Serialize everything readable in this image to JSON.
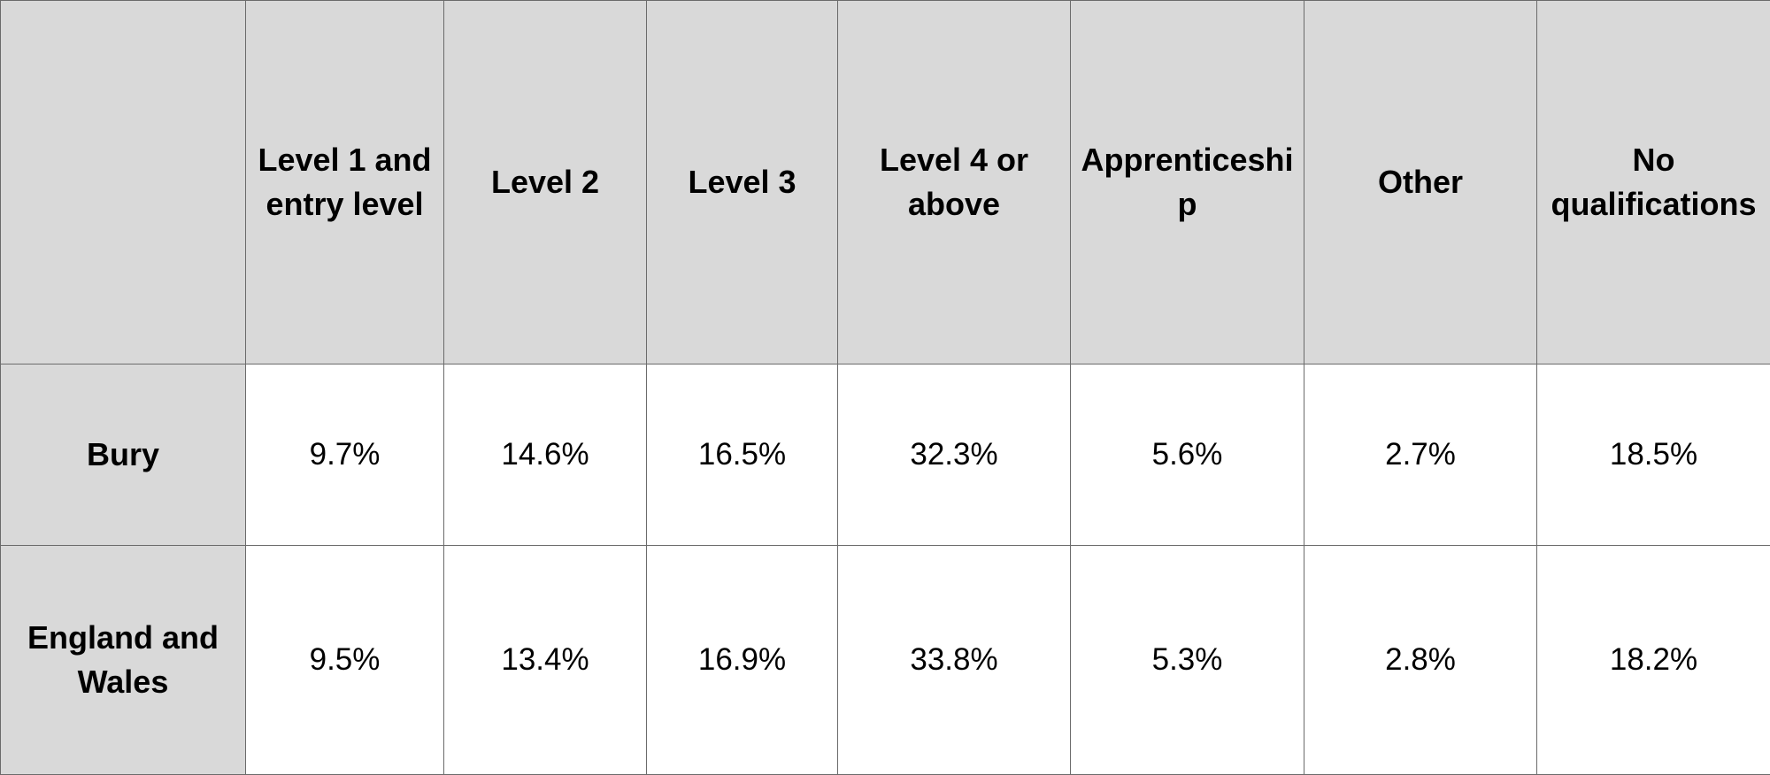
{
  "table": {
    "columns": [
      "Level 1 and entry level",
      "Level 2",
      "Level 3",
      "Level 4 or above",
      "Apprenticeship",
      "Other",
      "No qualifications"
    ],
    "rows": [
      {
        "label": "Bury",
        "values": [
          "9.7%",
          "14.6%",
          "16.5%",
          "32.3%",
          "5.6%",
          "2.7%",
          "18.5%"
        ]
      },
      {
        "label": "England and Wales",
        "values": [
          "9.5%",
          "13.4%",
          "16.9%",
          "33.8%",
          "5.3%",
          "2.8%",
          "18.2%"
        ]
      }
    ]
  }
}
